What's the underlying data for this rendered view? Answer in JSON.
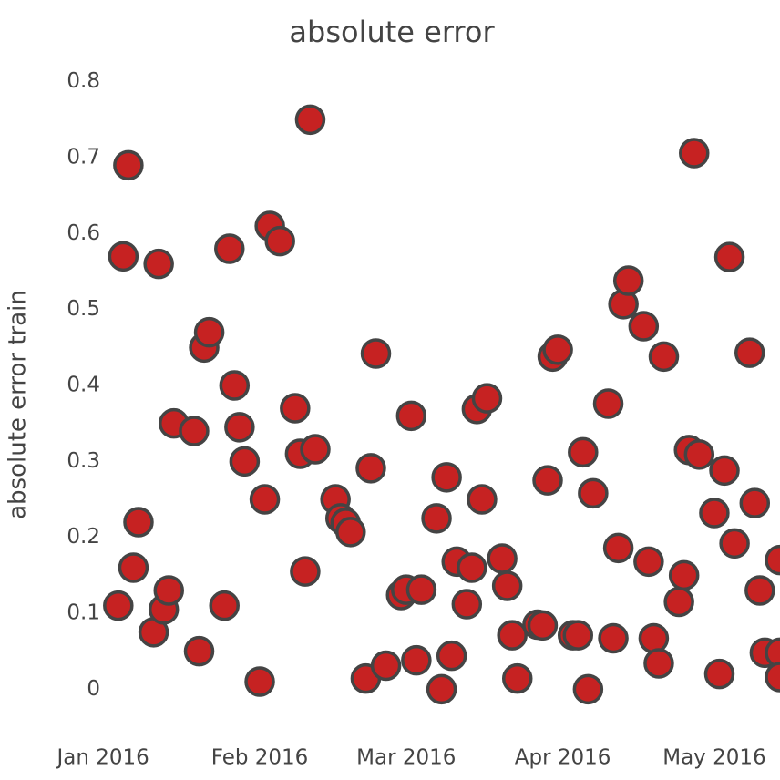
{
  "chart_data": {
    "type": "scatter",
    "title": "absolute error",
    "y_label": "absolute error train",
    "color": "#c62222",
    "edge_color": "#444444",
    "grid": false,
    "xlim": [
      -4,
      134
    ],
    "ylim": [
      -0.05,
      0.85
    ],
    "xticks": [
      {
        "value": 0,
        "label": "Jan 2016"
      },
      {
        "value": 31,
        "label": "Feb 2016"
      },
      {
        "value": 60,
        "label": "Mar 2016"
      },
      {
        "value": 91,
        "label": "Apr 2016"
      },
      {
        "value": 121,
        "label": "May 2016"
      }
    ],
    "yticks": [
      0,
      0.1,
      0.2,
      0.3,
      0.4,
      0.5,
      0.6,
      0.7,
      0.8
    ],
    "x": [
      3,
      5,
      4,
      6,
      7,
      10,
      11,
      12,
      13,
      14,
      18,
      19,
      20,
      21,
      24,
      25,
      26,
      27,
      28,
      31,
      32,
      33,
      35,
      38,
      39,
      40,
      41,
      42,
      46,
      47,
      48,
      49,
      52,
      53,
      54,
      56,
      59,
      60,
      61,
      62,
      63,
      66,
      67,
      68,
      69,
      70,
      72,
      73,
      74,
      75,
      76,
      79,
      80,
      81,
      82,
      86,
      87,
      88,
      89,
      90,
      93,
      94,
      95,
      96,
      97,
      100,
      101,
      102,
      103,
      104,
      107,
      108,
      109,
      110,
      111,
      114,
      115,
      116,
      117,
      118,
      121,
      122,
      123,
      124,
      125,
      128,
      129,
      130,
      131,
      134,
      134,
      134
    ],
    "values": [
      0.11,
      0.69,
      0.57,
      0.16,
      0.22,
      0.075,
      0.56,
      0.105,
      0.13,
      0.35,
      0.34,
      0.05,
      0.45,
      0.47,
      0.11,
      0.58,
      0.4,
      0.345,
      0.3,
      0.01,
      0.25,
      0.61,
      0.59,
      0.37,
      0.31,
      0.155,
      0.75,
      0.316,
      0.25,
      0.225,
      0.219,
      0.207,
      0.014,
      0.291,
      0.442,
      0.031,
      0.124,
      0.131,
      0.36,
      0.038,
      0.131,
      0.225,
      0.0,
      0.279,
      0.044,
      0.168,
      0.112,
      0.16,
      0.369,
      0.25,
      0.383,
      0.172,
      0.136,
      0.071,
      0.014,
      0.085,
      0.084,
      0.275,
      0.438,
      0.447,
      0.071,
      0.071,
      0.312,
      0.0,
      0.258,
      0.376,
      0.067,
      0.186,
      0.507,
      0.538,
      0.478,
      0.168,
      0.067,
      0.034,
      0.438,
      0.115,
      0.15,
      0.315,
      0.706,
      0.309,
      0.232,
      0.02,
      0.288,
      0.569,
      0.192,
      0.443,
      0.245,
      0.13,
      0.048,
      0.17,
      0.048,
      0.016
    ]
  }
}
